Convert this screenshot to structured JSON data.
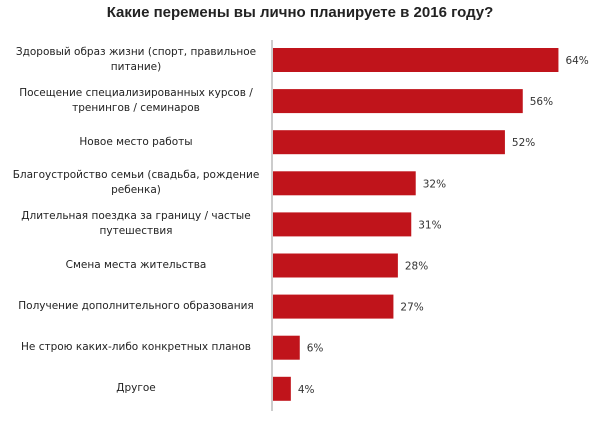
{
  "chart_data": {
    "type": "bar",
    "orientation": "horizontal",
    "title": "Какие перемены вы лично планируете в 2016 году?",
    "categories": [
      "Здоровый образ жизни (спорт, правильное питание)",
      "Посещение специализированных курсов / тренингов / семинаров",
      "Новое место работы",
      "Благоустройство семьи (свадьба,  рождение ребенка)",
      "Длительная поездка за границу / частые путешествия",
      "Смена места жительства",
      "Получение дополнительного образования",
      "Не строю каких-либо конкретных планов",
      "Другое"
    ],
    "values": [
      64,
      56,
      52,
      32,
      31,
      28,
      27,
      6,
      4
    ],
    "value_labels": [
      "64%",
      "56%",
      "52%",
      "32%",
      "31%",
      "28%",
      "27%",
      "6%",
      "4%"
    ],
    "xlabel": "",
    "ylabel": "",
    "xlim": [
      0,
      64
    ],
    "grid": false,
    "bar_color": "#c0141b"
  }
}
